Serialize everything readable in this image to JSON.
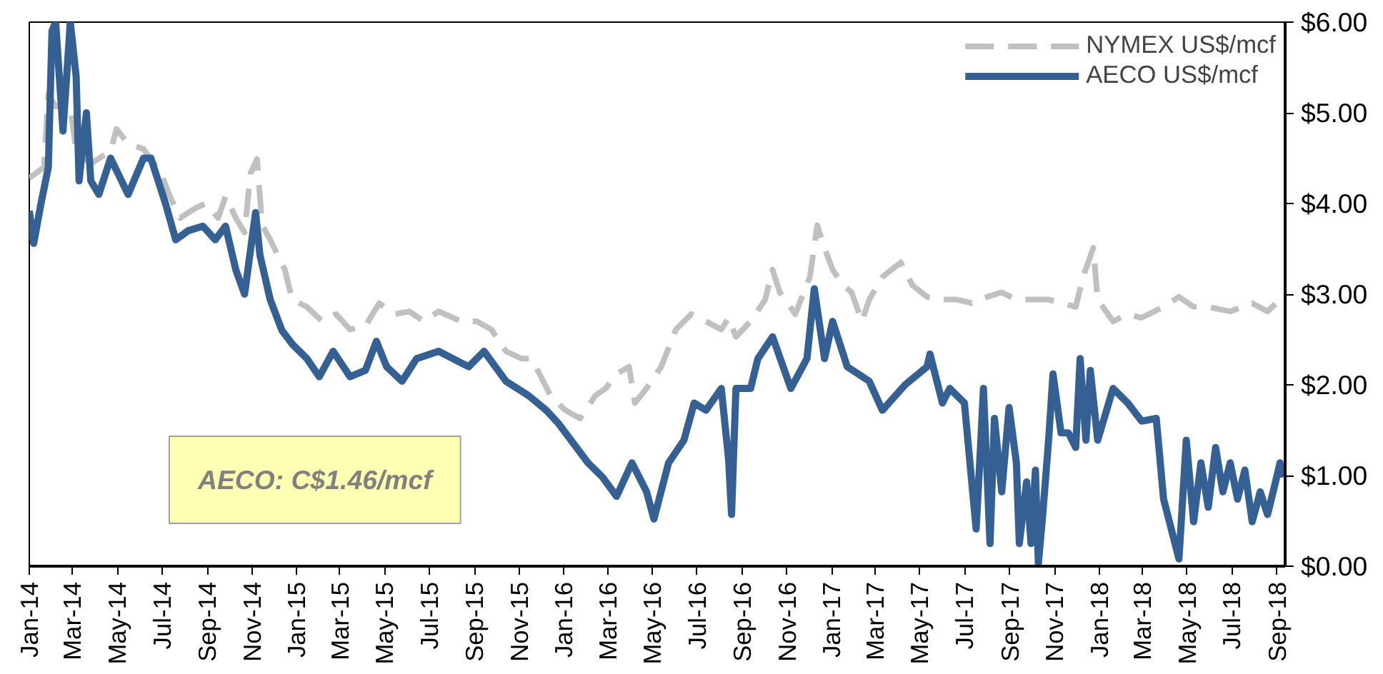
{
  "chart_data": {
    "type": "line",
    "annotations": [
      "AECO: C$1.46/mcf"
    ],
    "xlim": [
      "2014-01-01",
      "2018-09-12"
    ],
    "xticks": [
      {
        "value": "2014-01-01",
        "label": "Jan-14"
      },
      {
        "value": "2014-03-01",
        "label": "Mar-14"
      },
      {
        "value": "2014-05-01",
        "label": "May-14"
      },
      {
        "value": "2014-07-01",
        "label": "Jul-14"
      },
      {
        "value": "2014-09-01",
        "label": "Sep-14"
      },
      {
        "value": "2014-11-01",
        "label": "Nov-14"
      },
      {
        "value": "2015-01-01",
        "label": "Jan-15"
      },
      {
        "value": "2015-03-01",
        "label": "Mar-15"
      },
      {
        "value": "2015-05-01",
        "label": "May-15"
      },
      {
        "value": "2015-07-01",
        "label": "Jul-15"
      },
      {
        "value": "2015-09-01",
        "label": "Sep-15"
      },
      {
        "value": "2015-11-01",
        "label": "Nov-15"
      },
      {
        "value": "2016-01-01",
        "label": "Jan-16"
      },
      {
        "value": "2016-03-01",
        "label": "Mar-16"
      },
      {
        "value": "2016-05-01",
        "label": "May-16"
      },
      {
        "value": "2016-07-01",
        "label": "Jul-16"
      },
      {
        "value": "2016-09-01",
        "label": "Sep-16"
      },
      {
        "value": "2016-11-01",
        "label": "Nov-16"
      },
      {
        "value": "2017-01-01",
        "label": "Jan-17"
      },
      {
        "value": "2017-03-01",
        "label": "Mar-17"
      },
      {
        "value": "2017-05-01",
        "label": "May-17"
      },
      {
        "value": "2017-07-01",
        "label": "Jul-17"
      },
      {
        "value": "2017-09-01",
        "label": "Sep-17"
      },
      {
        "value": "2017-11-01",
        "label": "Nov-17"
      },
      {
        "value": "2018-01-01",
        "label": "Jan-18"
      },
      {
        "value": "2018-03-01",
        "label": "Mar-18"
      },
      {
        "value": "2018-05-01",
        "label": "May-18"
      },
      {
        "value": "2018-07-01",
        "label": "Jul-18"
      },
      {
        "value": "2018-09-01",
        "label": "Sep-18"
      }
    ],
    "ylim": [
      0,
      6
    ],
    "yticks": [
      {
        "value": 0,
        "label": "$0.00"
      },
      {
        "value": 1,
        "label": "$1.00"
      },
      {
        "value": 2,
        "label": "$2.00"
      },
      {
        "value": 3,
        "label": "$3.00"
      },
      {
        "value": 4,
        "label": "$4.00"
      },
      {
        "value": 5,
        "label": "$5.00"
      },
      {
        "value": 6,
        "label": "$6.00"
      }
    ],
    "grid": false,
    "legend": "top right",
    "series": [
      {
        "name": "NYMEX US$/mcf",
        "color": "#c0c0c0",
        "line_style": "dashed",
        "x": [
          "2014-01-01",
          "2014-01-21",
          "2014-01-27",
          "2014-02-06",
          "2014-02-26",
          "2014-03-06",
          "2014-03-26",
          "2014-04-22",
          "2014-04-30",
          "2014-05-16",
          "2014-06-06",
          "2014-06-30",
          "2014-07-12",
          "2014-07-26",
          "2014-08-16",
          "2014-08-30",
          "2014-09-16",
          "2014-09-26",
          "2014-10-10",
          "2014-10-22",
          "2014-10-30",
          "2014-11-08",
          "2014-11-15",
          "2014-11-26",
          "2014-12-16",
          "2014-12-26",
          "2015-01-15",
          "2015-02-05",
          "2015-02-24",
          "2015-03-15",
          "2015-04-05",
          "2015-04-24",
          "2015-05-15",
          "2015-06-04",
          "2015-06-24",
          "2015-07-14",
          "2015-08-14",
          "2015-09-04",
          "2015-09-24",
          "2015-10-14",
          "2015-11-04",
          "2015-11-18",
          "2015-12-14",
          "2016-01-03",
          "2016-01-23",
          "2016-02-13",
          "2016-02-27",
          "2016-03-13",
          "2016-03-30",
          "2016-04-07",
          "2016-04-23",
          "2016-05-13",
          "2016-06-02",
          "2016-06-23",
          "2016-07-13",
          "2016-08-03",
          "2016-08-13",
          "2016-08-23",
          "2016-09-12",
          "2016-10-02",
          "2016-10-12",
          "2016-10-22",
          "2016-11-12",
          "2016-12-02",
          "2016-12-12",
          "2016-12-22",
          "2017-01-02",
          "2017-01-16",
          "2017-01-28",
          "2017-02-11",
          "2017-02-21",
          "2017-03-11",
          "2017-04-05",
          "2017-04-21",
          "2017-05-11",
          "2017-06-01",
          "2017-06-21",
          "2017-07-11",
          "2017-08-01",
          "2017-08-21",
          "2017-09-10",
          "2017-10-24",
          "2017-11-30",
          "2017-12-10",
          "2017-12-24",
          "2017-12-30",
          "2018-01-20",
          "2018-02-09",
          "2018-02-28",
          "2018-03-30",
          "2018-04-20",
          "2018-05-10",
          "2018-05-30",
          "2018-06-29",
          "2018-07-29",
          "2018-08-19",
          "2018-09-09"
        ],
        "values": [
          4.28,
          4.4,
          5.2,
          5.07,
          5.07,
          4.58,
          4.44,
          4.58,
          4.82,
          4.66,
          4.6,
          4.33,
          4.08,
          3.84,
          3.95,
          4.0,
          3.84,
          4.08,
          3.84,
          3.68,
          4.33,
          4.49,
          3.76,
          3.6,
          3.27,
          2.94,
          2.86,
          2.7,
          2.78,
          2.61,
          2.65,
          2.9,
          2.78,
          2.81,
          2.7,
          2.81,
          2.7,
          2.7,
          2.61,
          2.37,
          2.29,
          2.29,
          1.88,
          1.72,
          1.63,
          1.88,
          1.96,
          2.12,
          2.2,
          1.8,
          1.96,
          2.2,
          2.61,
          2.78,
          2.7,
          2.61,
          2.74,
          2.53,
          2.7,
          2.94,
          3.27,
          3.02,
          2.78,
          3.19,
          3.76,
          3.51,
          3.27,
          3.1,
          3.02,
          2.7,
          2.94,
          3.19,
          3.35,
          3.1,
          2.97,
          2.94,
          2.94,
          2.9,
          2.97,
          3.02,
          2.94,
          2.94,
          2.86,
          3.19,
          3.51,
          2.94,
          2.7,
          2.78,
          2.74,
          2.86,
          2.97,
          2.86,
          2.86,
          2.81,
          2.9,
          2.81,
          2.97
        ]
      },
      {
        "name": "AECO US$/mcf",
        "color": "#356093",
        "line_style": "solid",
        "x": [
          "2014-01-01",
          "2014-01-07",
          "2014-01-17",
          "2014-01-27",
          "2014-02-01",
          "2014-02-06",
          "2014-02-16",
          "2014-02-26",
          "2014-03-06",
          "2014-03-10",
          "2014-03-20",
          "2014-03-26",
          "2014-04-06",
          "2014-04-22",
          "2014-05-16",
          "2014-06-06",
          "2014-06-16",
          "2014-07-06",
          "2014-07-20",
          "2014-08-06",
          "2014-08-26",
          "2014-09-12",
          "2014-09-26",
          "2014-10-10",
          "2014-10-22",
          "2014-11-06",
          "2014-11-12",
          "2014-11-26",
          "2014-12-12",
          "2014-12-26",
          "2015-01-15",
          "2015-02-01",
          "2015-02-20",
          "2015-03-15",
          "2015-04-05",
          "2015-04-20",
          "2015-05-04",
          "2015-05-25",
          "2015-06-14",
          "2015-07-14",
          "2015-08-24",
          "2015-09-14",
          "2015-10-14",
          "2015-11-14",
          "2015-12-08",
          "2015-12-24",
          "2016-02-03",
          "2016-02-23",
          "2016-03-13",
          "2016-04-03",
          "2016-04-23",
          "2016-05-03",
          "2016-05-23",
          "2016-06-13",
          "2016-06-27",
          "2016-07-13",
          "2016-08-03",
          "2016-08-13",
          "2016-08-17",
          "2016-08-23",
          "2016-09-12",
          "2016-09-22",
          "2016-10-12",
          "2016-11-06",
          "2016-11-28",
          "2016-12-08",
          "2016-12-22",
          "2017-01-02",
          "2017-01-22",
          "2017-02-21",
          "2017-03-11",
          "2017-04-11",
          "2017-05-11",
          "2017-05-15",
          "2017-06-01",
          "2017-06-11",
          "2017-07-01",
          "2017-07-17",
          "2017-07-23",
          "2017-07-27",
          "2017-08-05",
          "2017-08-11",
          "2017-08-21",
          "2017-08-31",
          "2017-09-10",
          "2017-09-14",
          "2017-09-24",
          "2017-09-30",
          "2017-10-06",
          "2017-10-10",
          "2017-10-16",
          "2017-10-24",
          "2017-10-30",
          "2017-11-10",
          "2017-11-20",
          "2017-11-30",
          "2017-12-06",
          "2017-12-14",
          "2017-12-20",
          "2017-12-30",
          "2018-01-20",
          "2018-02-09",
          "2018-02-28",
          "2018-03-20",
          "2018-03-30",
          "2018-04-20",
          "2018-04-30",
          "2018-05-10",
          "2018-05-20",
          "2018-05-30",
          "2018-06-09",
          "2018-06-19",
          "2018-06-29",
          "2018-07-09",
          "2018-07-19",
          "2018-07-29",
          "2018-08-09",
          "2018-08-19",
          "2018-08-29",
          "2018-09-05",
          "2018-09-09"
        ],
        "values": [
          3.92,
          3.56,
          4.0,
          4.4,
          5.9,
          6.0,
          4.8,
          6.0,
          5.4,
          4.25,
          5.0,
          4.25,
          4.1,
          4.5,
          4.1,
          4.5,
          4.5,
          4.0,
          3.6,
          3.7,
          3.75,
          3.6,
          3.75,
          3.27,
          3.0,
          3.9,
          3.43,
          2.94,
          2.6,
          2.45,
          2.29,
          2.09,
          2.37,
          2.09,
          2.16,
          2.48,
          2.2,
          2.04,
          2.29,
          2.37,
          2.2,
          2.37,
          2.04,
          1.88,
          1.72,
          1.58,
          1.14,
          0.98,
          0.77,
          1.14,
          0.82,
          0.52,
          1.14,
          1.39,
          1.8,
          1.72,
          1.96,
          1.18,
          0.57,
          1.96,
          1.96,
          2.29,
          2.53,
          1.96,
          2.29,
          3.06,
          2.29,
          2.7,
          2.2,
          2.04,
          1.72,
          2.0,
          2.2,
          2.34,
          1.8,
          1.96,
          1.8,
          0.41,
          1.31,
          1.96,
          0.25,
          1.63,
          0.82,
          1.75,
          1.14,
          0.25,
          0.93,
          0.25,
          1.06,
          0.03,
          0.57,
          1.39,
          2.12,
          1.47,
          1.47,
          1.31,
          2.29,
          1.39,
          2.16,
          1.39,
          1.96,
          1.8,
          1.6,
          1.63,
          0.74,
          0.08,
          1.39,
          0.49,
          1.14,
          0.65,
          1.31,
          0.82,
          1.14,
          0.74,
          1.06,
          0.49,
          0.82,
          0.57,
          0.9,
          1.14,
          0.98
        ]
      }
    ]
  }
}
